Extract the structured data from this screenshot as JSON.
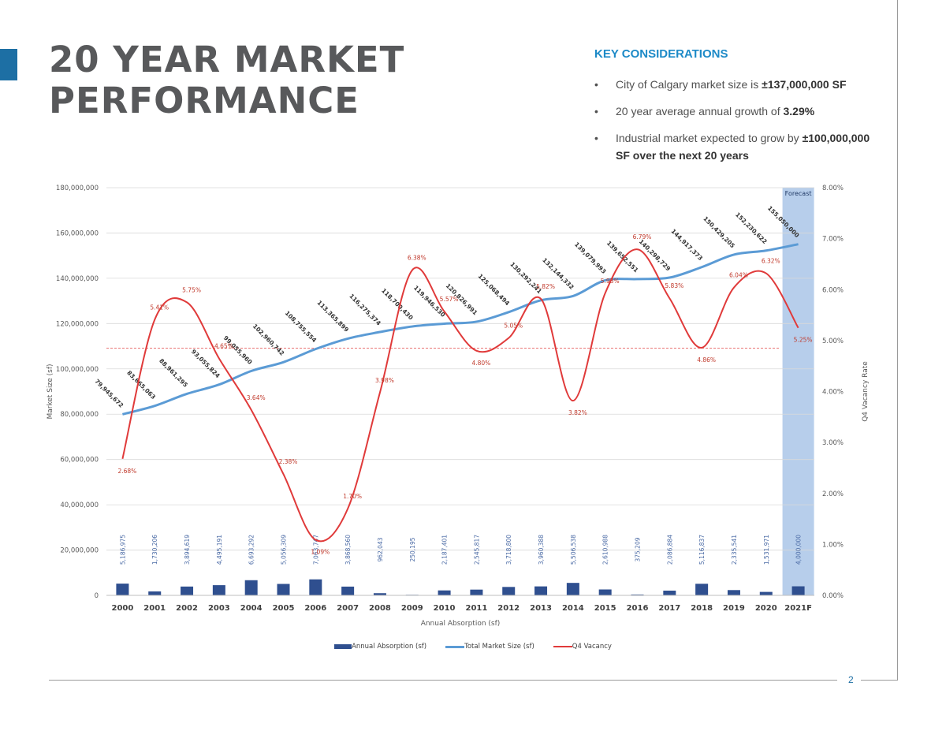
{
  "title_lines": [
    "20 YEAR MARKET",
    "PERFORMANCE"
  ],
  "page_number": "2",
  "key_considerations": {
    "heading": "KEY CONSIDERATIONS",
    "items": [
      {
        "text": "City of Calgary market size is ",
        "bold": "±137,000,000 SF"
      },
      {
        "text": "20 year average annual growth of ",
        "bold": "3.29%"
      },
      {
        "text": "Industrial market expected to grow by ",
        "bold": "±100,000,000 SF over the next 20 years"
      }
    ]
  },
  "colors": {
    "bars": "#2f4f8f",
    "market_line": "#5b9bd5",
    "vacancy_line": "#e03a3a",
    "forecast_fill": "#aac6e8",
    "accent": "#1d6fa4",
    "title": "#58595b",
    "heading": "#1d8ac7"
  },
  "chart_data": {
    "type": "bar",
    "xlabel": "Annual Absorption (sf)",
    "ylabel": "Market Size (sf)",
    "y2label": "Q4 Vacancy Rate",
    "ylim": [
      0,
      180000000
    ],
    "y2lim": [
      0,
      8
    ],
    "yticks": [
      "0",
      "20,000,000",
      "40,000,000",
      "60,000,000",
      "80,000,000",
      "100,000,000",
      "120,000,000",
      "140,000,000",
      "160,000,000",
      "180,000,000"
    ],
    "y2ticks": [
      "0.00%",
      "1.00%",
      "2.00%",
      "3.00%",
      "4.00%",
      "5.00%",
      "6.00%",
      "7.00%",
      "8.00%"
    ],
    "categories": [
      "2000",
      "2001",
      "2002",
      "2003",
      "2004",
      "2005",
      "2006",
      "2007",
      "2008",
      "2009",
      "2010",
      "2011",
      "2012",
      "2013",
      "2014",
      "2015",
      "2016",
      "2017",
      "2018",
      "2019",
      "2020",
      "2021F"
    ],
    "forecast_label": "Forecast",
    "forecast_category": "2021F",
    "average_vacancy": 4.85,
    "grid": true,
    "legend_position": "bottom-center",
    "series": [
      {
        "name": "Annual Absorption (sf)",
        "kind": "bar",
        "axis": "left",
        "values": [
          5186975,
          1730206,
          3894619,
          4495191,
          6693292,
          5056309,
          7063747,
          3868560,
          962043,
          250195,
          2187401,
          2545817,
          3718800,
          3960388,
          5506538,
          2610988,
          375209,
          2086884,
          5116837,
          2335541,
          1531971,
          4000000
        ],
        "labels": [
          "5,186,975",
          "1,730,206",
          "3,894,619",
          "4,495,191",
          "6,693,292",
          "5,056,309",
          "7,063,747",
          "3,868,560",
          "962,043",
          "250,195",
          "2,187,401",
          "2,545,817",
          "3,718,800",
          "3,960,388",
          "5,506,538",
          "2,610,988",
          "375,209",
          "2,086,884",
          "5,116,837",
          "2,335,541",
          "1,531,971",
          "4,000,000"
        ]
      },
      {
        "name": "Total Market Size (sf)",
        "kind": "line",
        "axis": "left",
        "values": [
          79945672,
          83665063,
          88961295,
          93055824,
          99055960,
          102960742,
          108755554,
          113365899,
          116275374,
          118700430,
          119946530,
          120826991,
          125068494,
          130292241,
          132144332,
          139079993,
          139652551,
          140298729,
          144917373,
          150429205,
          152230622,
          155050000
        ],
        "labels": [
          "79,945,672",
          "83,665,063",
          "88,961,295",
          "93,055,824",
          "99,055,960",
          "102,960,742",
          "108,755,554",
          "113,365,899",
          "116,275,374",
          "118,700,430",
          "119,946,530",
          "120,826,991",
          "125,068,494",
          "130,292,241",
          "132,144,332",
          "139,079,993",
          "139,652,551",
          "140,298,729",
          "144,917,373",
          "150,429,205",
          "152,230,622",
          "155,050,000"
        ]
      },
      {
        "name": "Q4 Vacancy",
        "kind": "line",
        "axis": "right",
        "values": [
          2.68,
          5.41,
          5.75,
          4.65,
          3.64,
          2.38,
          1.09,
          1.7,
          3.98,
          6.38,
          5.57,
          4.8,
          5.05,
          5.82,
          3.82,
          5.93,
          6.79,
          5.83,
          4.86,
          6.04,
          6.32,
          5.25
        ],
        "labels": [
          "2.68%",
          "5.41%",
          "5.75%",
          "4.65%",
          "3.64%",
          "2.38%",
          "1.09%",
          "1.70%",
          "3.98%",
          "6.38%",
          "5.57%",
          "4.80%",
          "5.05%",
          "5.82%",
          "3.82%",
          "5.93%",
          "6.79%",
          "5.83%",
          "4.86%",
          "6.04%",
          "6.32%",
          "5.25%"
        ]
      }
    ]
  }
}
